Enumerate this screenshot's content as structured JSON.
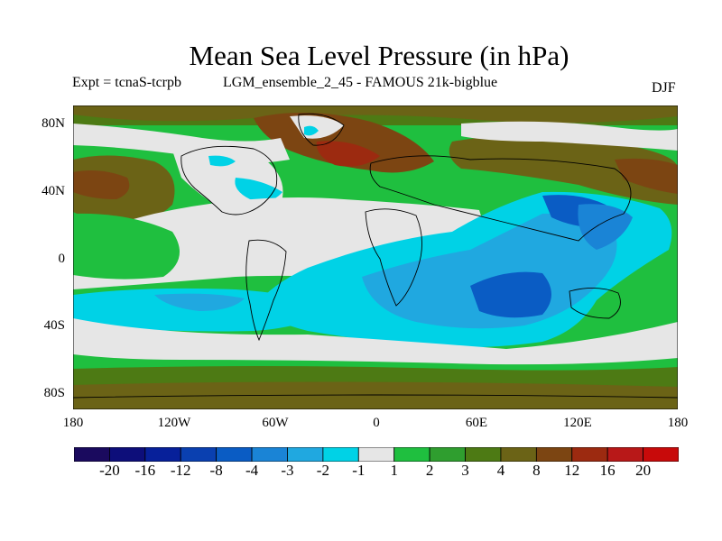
{
  "title": "Mean Sea Level Pressure (in hPa)",
  "subtitle_left": "Expt = tcnaS-tcrpb",
  "subtitle_center": "LGM_ensemble_2_45 - FAMOUS 21k-bigblue",
  "subtitle_right": "DJF",
  "map": {
    "lat_labels": [
      "80N",
      "40N",
      "0",
      "40S",
      "80S"
    ],
    "lon_labels": [
      "180",
      "120W",
      "60W",
      "0",
      "60E",
      "120E",
      "180"
    ]
  },
  "colorbar": {
    "labels": [
      "-20",
      "-16",
      "-12",
      "-8",
      "-4",
      "-3",
      "-2",
      "-1",
      "1",
      "2",
      "3",
      "4",
      "8",
      "12",
      "16",
      "20"
    ],
    "colors": [
      "#1a0a5e",
      "#0d0e7a",
      "#07209a",
      "#0a40b0",
      "#0a5cc4",
      "#1a84d6",
      "#20a8e0",
      "#00d2e6",
      "#e6e6e6",
      "#1fbf3f",
      "#2f9e2f",
      "#4d7a14",
      "#6b6316",
      "#7c4512",
      "#9c2a10",
      "#b81818",
      "#c80a0a"
    ]
  },
  "chart_data": {
    "type": "heatmap",
    "title": "Mean Sea Level Pressure (in hPa)",
    "units": "hPa",
    "season": "DJF",
    "x_range": [
      -180,
      180
    ],
    "y_range": [
      -90,
      90
    ],
    "contour_levels": [
      -20,
      -16,
      -12,
      -8,
      -4,
      -3,
      -2,
      -1,
      1,
      2,
      3,
      4,
      8,
      12,
      16,
      20
    ]
  }
}
